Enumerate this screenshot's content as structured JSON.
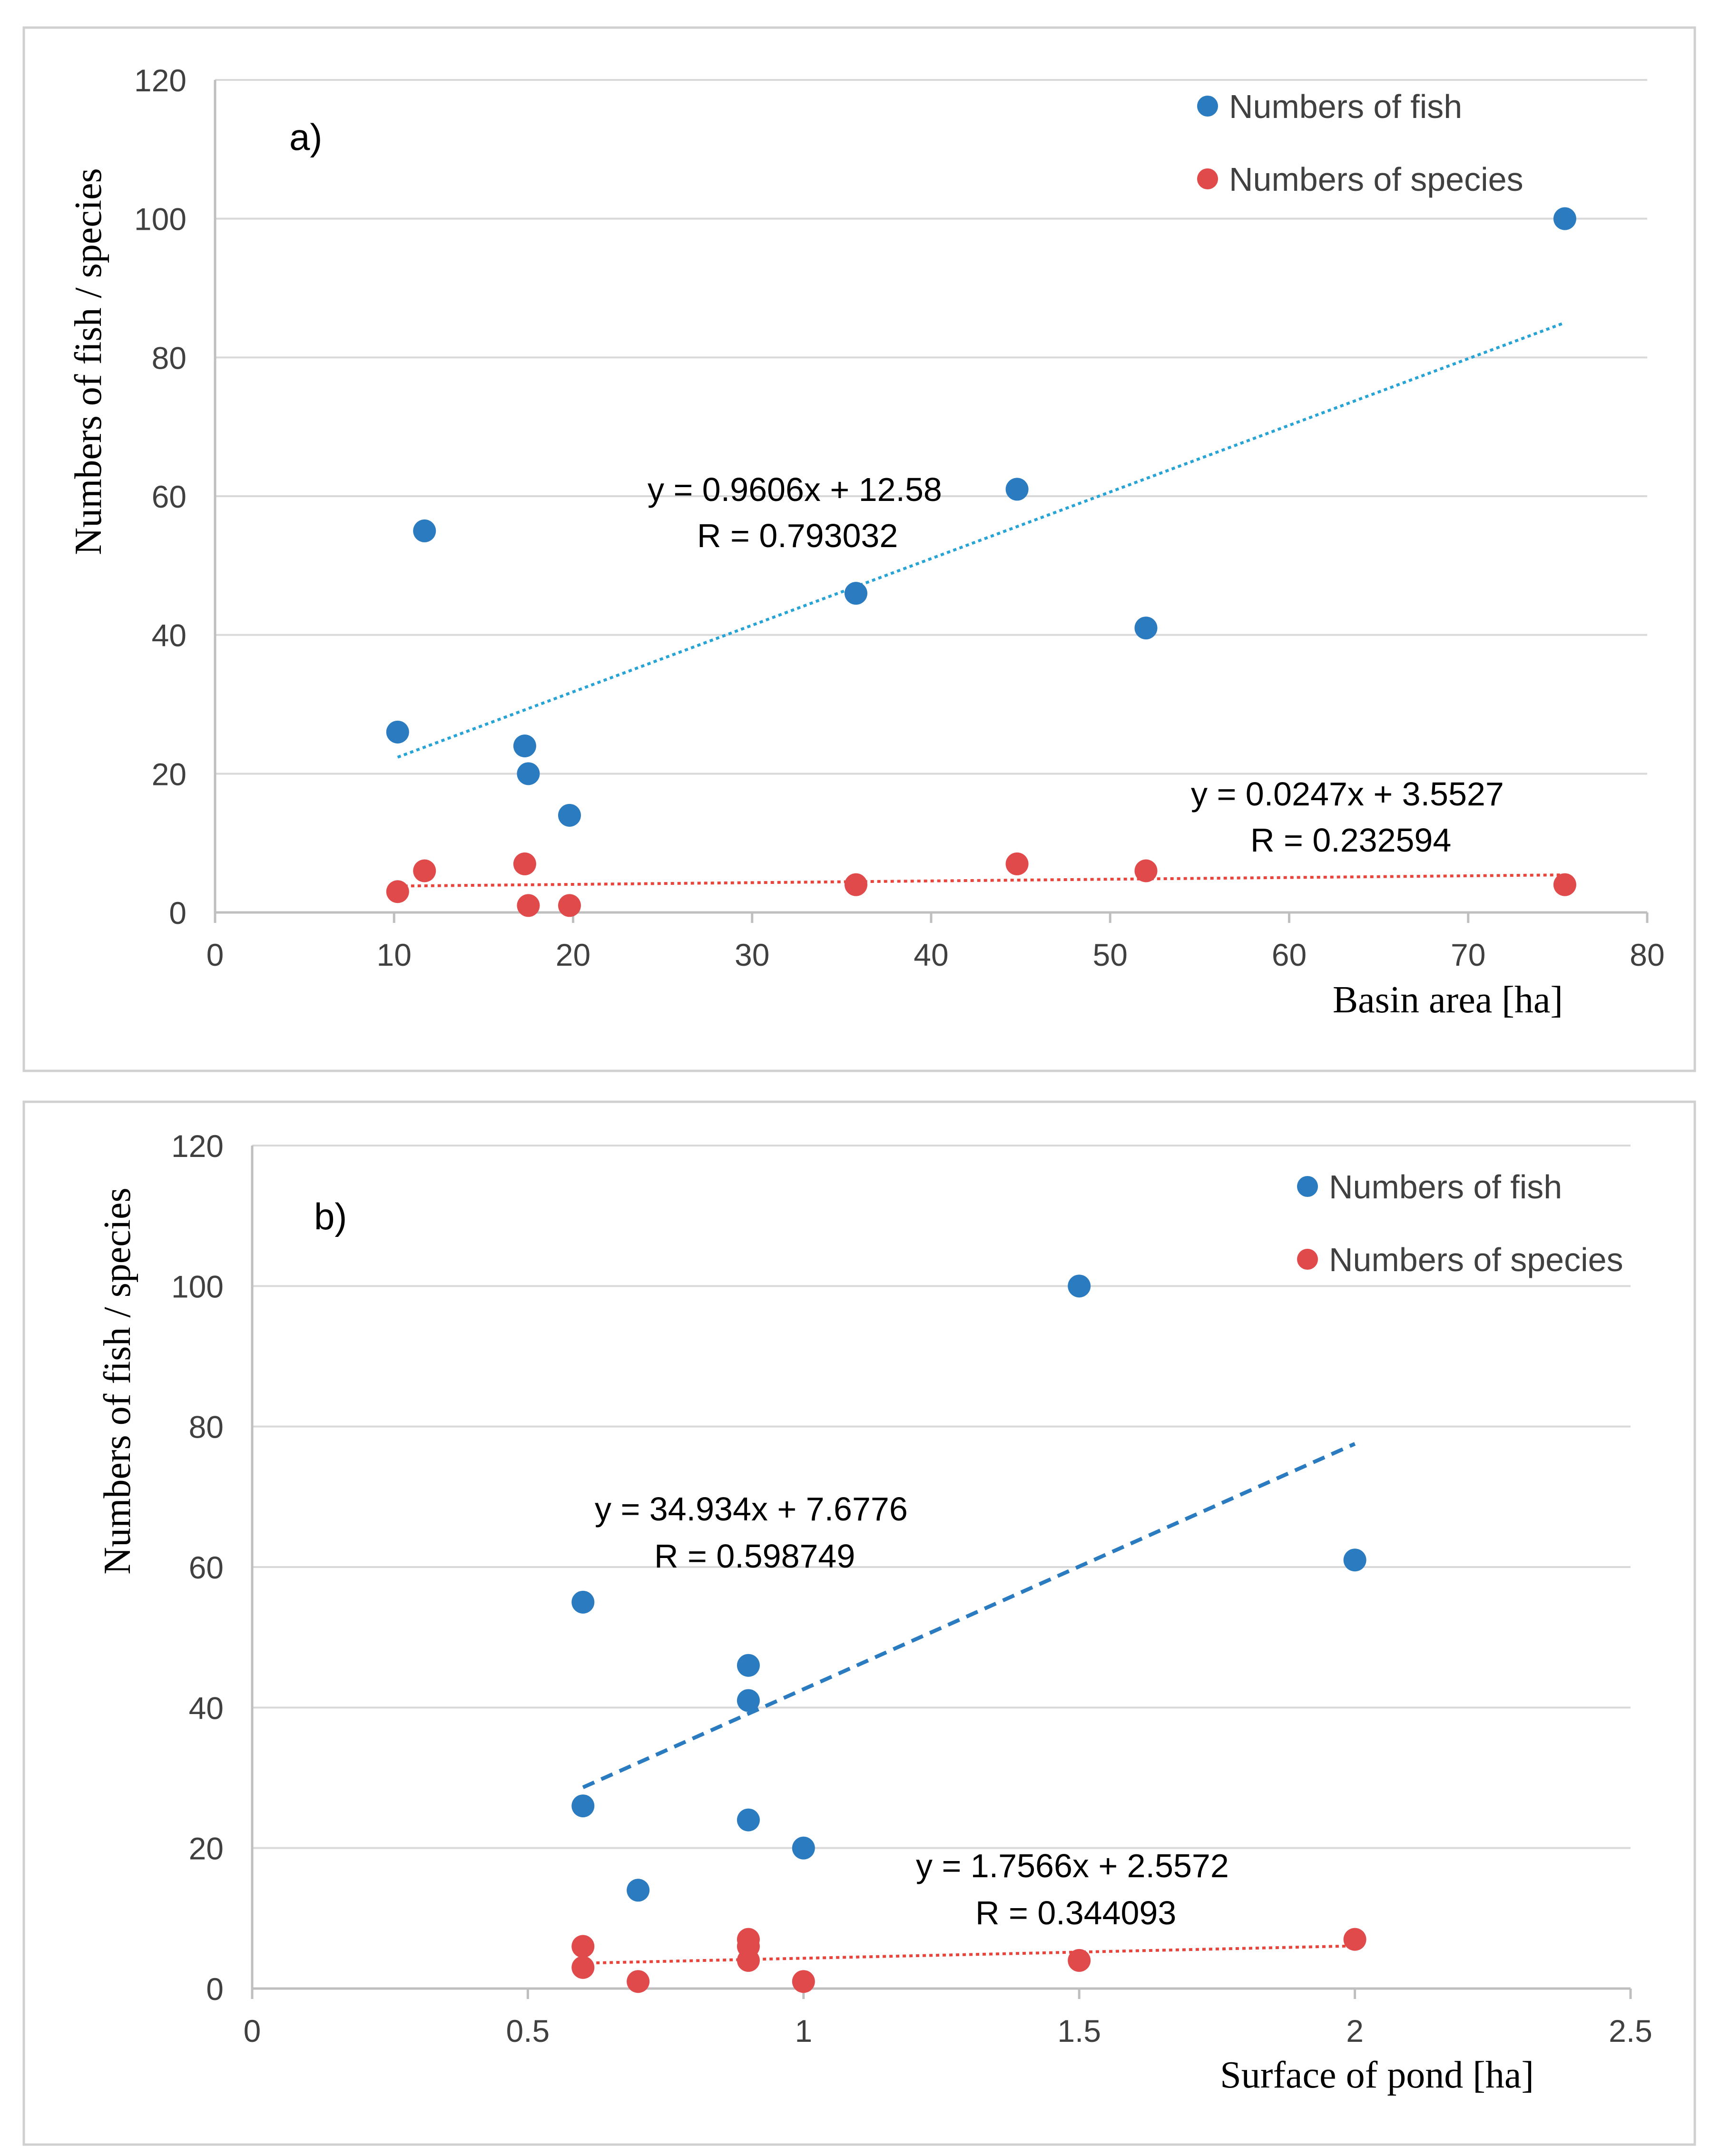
{
  "colors": {
    "fish": "#2a7bbf",
    "species": "#e04a4a",
    "fish_trend_a": "#27a3d6",
    "fish_trend_b": "#2a7bbf",
    "species_trend": "#e8453c",
    "grid": "#d9d9d9",
    "axis": "#bfbfbf",
    "text": "#404040",
    "frame": "#d0d0d0"
  },
  "chart_data": [
    {
      "type": "scatter",
      "panel_label": "a)",
      "xlabel": "Basin area [ha]",
      "ylabel": "Numbers of fish / species",
      "xlim": [
        0,
        80
      ],
      "ylim": [
        0,
        120
      ],
      "x_ticks": [
        0,
        10,
        20,
        30,
        40,
        50,
        60,
        70,
        80
      ],
      "y_ticks": [
        0,
        20,
        40,
        60,
        80,
        100,
        120
      ],
      "grid": true,
      "legend": "top-right",
      "series": [
        {
          "name": "Numbers of fish",
          "points": [
            [
              10.2,
              26
            ],
            [
              11.7,
              55
            ],
            [
              17.3,
              24
            ],
            [
              17.5,
              20
            ],
            [
              19.8,
              14
            ],
            [
              35.8,
              46
            ],
            [
              44.8,
              61
            ],
            [
              52,
              41
            ],
            [
              75.4,
              100
            ]
          ],
          "trendline": {
            "x_range": [
              10.2,
              75.4
            ],
            "slope": 0.9606,
            "intercept": 12.58,
            "style": "dotted"
          },
          "equation": "y = 0.9606x + 12.58",
          "r_text": "R = 0.793032"
        },
        {
          "name": "Numbers of species",
          "points": [
            [
              10.2,
              3
            ],
            [
              11.7,
              6
            ],
            [
              17.3,
              7
            ],
            [
              17.5,
              1
            ],
            [
              19.8,
              1
            ],
            [
              35.8,
              4
            ],
            [
              44.8,
              7
            ],
            [
              52,
              6
            ],
            [
              75.4,
              4
            ]
          ],
          "trendline": {
            "x_range": [
              10.2,
              75.4
            ],
            "slope": 0.0247,
            "intercept": 3.5527,
            "style": "dotted"
          },
          "equation": "y = 0.0247x + 3.5527",
          "r_text": "R = 0.232594"
        }
      ]
    },
    {
      "type": "scatter",
      "panel_label": "b)",
      "xlabel": "Surface of pond [ha]",
      "ylabel": "Numbers of fish / species",
      "xlim": [
        0,
        2.5
      ],
      "ylim": [
        0,
        120
      ],
      "x_ticks": [
        "0",
        "0.5",
        "1",
        "1.5",
        "2",
        "2.5"
      ],
      "y_ticks": [
        0,
        20,
        40,
        60,
        80,
        100,
        120
      ],
      "grid": true,
      "legend": "top-right",
      "series": [
        {
          "name": "Numbers of fish",
          "points": [
            [
              0.6,
              26
            ],
            [
              0.6,
              55
            ],
            [
              0.7,
              14
            ],
            [
              0.9,
              24
            ],
            [
              0.9,
              41
            ],
            [
              0.9,
              46
            ],
            [
              1.0,
              20
            ],
            [
              1.5,
              100
            ],
            [
              2.0,
              61
            ]
          ],
          "trendline": {
            "x_range": [
              0.6,
              2.0
            ],
            "slope": 34.934,
            "intercept": 7.6776,
            "style": "dashed"
          },
          "equation": "y = 34.934x + 7.6776",
          "r_text": "R = 0.598749"
        },
        {
          "name": "Numbers of species",
          "points": [
            [
              0.6,
              3
            ],
            [
              0.6,
              6
            ],
            [
              0.7,
              1
            ],
            [
              0.9,
              4
            ],
            [
              0.9,
              6
            ],
            [
              0.9,
              7
            ],
            [
              1.0,
              1
            ],
            [
              1.5,
              4
            ],
            [
              2.0,
              7
            ]
          ],
          "trendline": {
            "x_range": [
              0.6,
              2.0
            ],
            "slope": 1.7566,
            "intercept": 2.5572,
            "style": "dotted"
          },
          "equation": "y = 1.7566x + 2.5572",
          "r_text": "R = 0.344093"
        }
      ]
    }
  ]
}
